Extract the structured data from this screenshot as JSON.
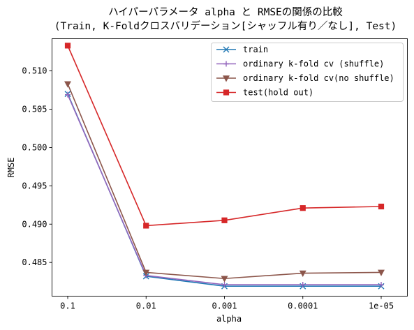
{
  "chart_data": {
    "type": "line",
    "title": [
      "ハイパーパラメータ alpha と RMSEの関係の比較",
      "(Train, K-Foldクロスバリデーション[シャッフル有り／なし], Test)"
    ],
    "xlabel": "alpha",
    "ylabel": "RMSE",
    "categories": [
      "0.1",
      "0.01",
      "0.001",
      "0.0001",
      "1e-05"
    ],
    "ylim": [
      0.4806,
      0.5142
    ],
    "yticks": [
      0.485,
      0.49,
      0.495,
      0.5,
      0.505,
      0.51
    ],
    "ytick_labels": [
      "0.485",
      "0.490",
      "0.495",
      "0.500",
      "0.505",
      "0.510"
    ],
    "grid": false,
    "legend_position": "top-right",
    "series": [
      {
        "name": "train",
        "color": "#1f77b4",
        "marker": "x",
        "values": [
          0.507,
          0.4832,
          0.4819,
          0.4819,
          0.4819
        ]
      },
      {
        "name": "ordinary k-fold cv (shuffle)",
        "color": "#9467bd",
        "marker": "plus",
        "values": [
          0.5069,
          0.4833,
          0.4821,
          0.4821,
          0.4821
        ]
      },
      {
        "name": "ordinary k-fold cv(no shuffle)",
        "color": "#8c564b",
        "marker": "triangle-down",
        "values": [
          0.5083,
          0.4837,
          0.4829,
          0.4836,
          0.4837
        ]
      },
      {
        "name": "test(hold out)",
        "color": "#d62728",
        "marker": "square",
        "values": [
          0.5133,
          0.4898,
          0.4905,
          0.4921,
          0.4923
        ]
      }
    ]
  }
}
